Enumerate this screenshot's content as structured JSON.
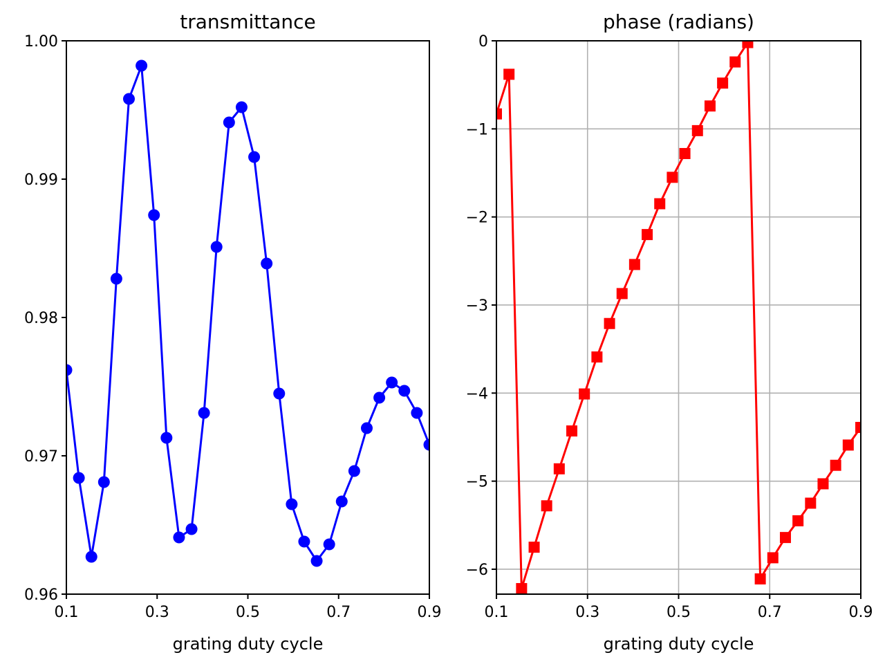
{
  "chart_data": [
    {
      "type": "line",
      "title": "transmittance",
      "xlabel": "grating duty cycle",
      "ylabel": "",
      "xlim": [
        0.1,
        0.9
      ],
      "ylim": [
        0.96,
        1.0
      ],
      "grid": false,
      "x_ticks": [
        "0.1",
        "0.3",
        "0.5",
        "0.7",
        "0.9"
      ],
      "y_ticks": [
        "0.96",
        "0.97",
        "0.98",
        "0.99",
        "1.00"
      ],
      "y_tick_values": [
        0.96,
        0.97,
        0.98,
        0.99,
        1.0
      ],
      "series": [
        {
          "color": "#0000ff",
          "marker": "circle",
          "x": [
            0.1,
            0.1276,
            0.1552,
            0.1828,
            0.2103,
            0.2379,
            0.2655,
            0.2931,
            0.3207,
            0.3483,
            0.3759,
            0.4034,
            0.431,
            0.4586,
            0.4862,
            0.5138,
            0.5414,
            0.569,
            0.5966,
            0.6241,
            0.6517,
            0.6793,
            0.7069,
            0.7345,
            0.7621,
            0.7897,
            0.8172,
            0.8448,
            0.8724,
            0.9
          ],
          "values": [
            0.9762,
            0.9684,
            0.9627,
            0.9681,
            0.9828,
            0.9958,
            0.9982,
            0.9874,
            0.9713,
            0.9641,
            0.9647,
            0.9731,
            0.9851,
            0.9941,
            0.9952,
            0.9916,
            0.9839,
            0.9745,
            0.9665,
            0.9638,
            0.9624,
            0.9636,
            0.9667,
            0.9689,
            0.972,
            0.9742,
            0.9753,
            0.9747,
            0.9731,
            0.9708
          ]
        }
      ]
    },
    {
      "type": "line",
      "title": "phase (radians)",
      "xlabel": "grating duty cycle",
      "ylabel": "",
      "xlim": [
        0.1,
        0.9
      ],
      "ylim": [
        -6.283,
        0
      ],
      "grid": true,
      "x_ticks": [
        "0.1",
        "0.3",
        "0.5",
        "0.7",
        "0.9"
      ],
      "y_ticks": [
        "0",
        "−1",
        "−2",
        "−3",
        "−4",
        "−5",
        "−6"
      ],
      "y_tick_values": [
        0,
        -1,
        -2,
        -3,
        -4,
        -5,
        -6
      ],
      "series": [
        {
          "color": "#ff0000",
          "marker": "square",
          "x": [
            0.1,
            0.1276,
            0.1552,
            0.1828,
            0.2103,
            0.2379,
            0.2655,
            0.2931,
            0.3207,
            0.3483,
            0.3759,
            0.4034,
            0.431,
            0.4586,
            0.4862,
            0.5138,
            0.5414,
            0.569,
            0.5966,
            0.6241,
            0.6517,
            0.6793,
            0.7069,
            0.7345,
            0.7621,
            0.7897,
            0.8172,
            0.8448,
            0.8724,
            0.9
          ],
          "values": [
            -0.83,
            -0.38,
            -6.22,
            -5.75,
            -5.28,
            -4.86,
            -4.43,
            -4.01,
            -3.59,
            -3.21,
            -2.87,
            -2.54,
            -2.2,
            -1.85,
            -1.55,
            -1.28,
            -1.02,
            -0.74,
            -0.48,
            -0.24,
            -0.02,
            -6.11,
            -5.87,
            -5.64,
            -5.45,
            -5.25,
            -5.03,
            -4.82,
            -4.59,
            -4.39
          ]
        }
      ]
    }
  ]
}
